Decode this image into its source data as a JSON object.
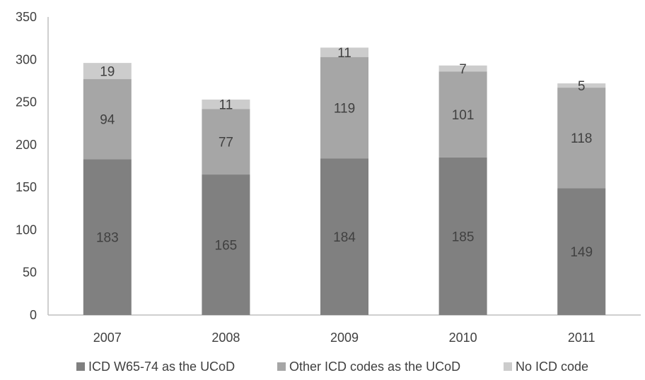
{
  "chart_data": {
    "type": "bar",
    "stacked": true,
    "categories": [
      "2007",
      "2008",
      "2009",
      "2010",
      "2011"
    ],
    "series": [
      {
        "name": "ICD W65-74 as the UCoD",
        "color": "#808080",
        "values": [
          183,
          165,
          184,
          185,
          149
        ]
      },
      {
        "name": "Other ICD codes as the UCoD",
        "color": "#a6a6a6",
        "values": [
          94,
          77,
          119,
          101,
          118
        ]
      },
      {
        "name": "No ICD code",
        "color": "#cccccc",
        "values": [
          19,
          11,
          11,
          7,
          5
        ]
      }
    ],
    "ylim": [
      0,
      350
    ],
    "yticks": [
      "0",
      "50",
      "100",
      "150",
      "200",
      "250",
      "300",
      "350"
    ],
    "grid": false,
    "legend_position": "bottom"
  }
}
